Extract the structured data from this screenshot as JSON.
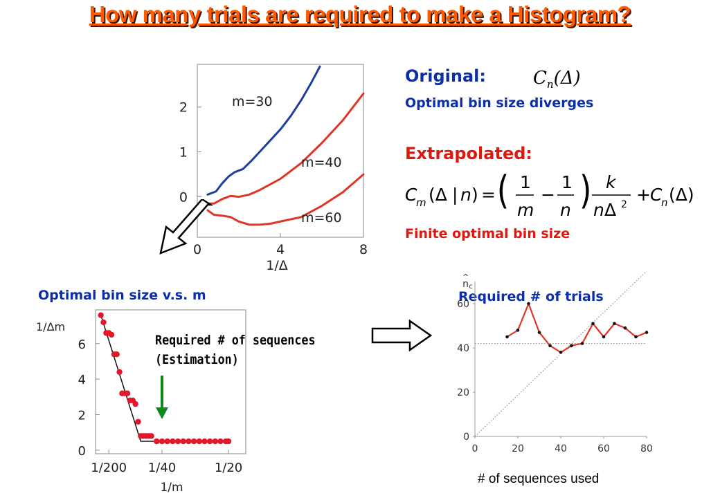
{
  "slide": {
    "title": "How many trials are required to make a Histogram?"
  },
  "colors": {
    "title_orange": "#ff5a00",
    "heading_blue": "#0a2fa8",
    "red": "#e1160f",
    "series_blue": "#1d3f9a",
    "series_red": "#e03424",
    "dots": "#e0182a",
    "arrow_green": "#0d8a1c"
  },
  "right_text": {
    "original_label": "Original:",
    "original_formula": "C_n(Δ)",
    "original_note": "Optimal bin size diverges",
    "extrapolated_label": "Extrapolated:",
    "extrapolated_formula": "C_m(Δ | n) = (1/m − 1/n) k/(nΔ²) + C_n(Δ)",
    "extrapolated_note": "Finite optimal bin size"
  },
  "bottom_left": {
    "heading": "Optimal bin size v.s. m",
    "annotation_line1": "Required # of sequences",
    "annotation_line2": "(Estimation)"
  },
  "bottom_right": {
    "heading": "Required # of trials",
    "footer": "# of sequences used"
  },
  "icons": [
    "hollow-arrow-down-left-icon",
    "hollow-arrow-right-icon",
    "green-arrow-down-icon"
  ],
  "chart_data": [
    {
      "type": "line",
      "xlabel": "1/Δ",
      "ylabel": "",
      "xlim": [
        0,
        8
      ],
      "ylim": [
        -0.9,
        2.95
      ],
      "x_ticks": [
        "0",
        "4",
        "8"
      ],
      "y_ticks": [
        "0",
        "1",
        "2"
      ],
      "series": [
        {
          "name": "m=30",
          "color": "#1d3f9a",
          "x": [
            0.5,
            0.9,
            1.2,
            1.5,
            1.8,
            2.2,
            2.6,
            3.0,
            3.5,
            4.0,
            4.5,
            5.0,
            5.5,
            5.9
          ],
          "y": [
            0.05,
            0.12,
            0.3,
            0.45,
            0.55,
            0.62,
            0.8,
            1.0,
            1.25,
            1.5,
            1.8,
            2.15,
            2.55,
            2.9
          ]
        },
        {
          "name": "m=40",
          "color": "#e03424",
          "x": [
            0.5,
            0.8,
            1.2,
            1.6,
            2.0,
            2.5,
            3.0,
            4.0,
            5.0,
            6.0,
            7.0,
            8.0
          ],
          "y": [
            -0.15,
            -0.15,
            -0.05,
            0.02,
            0.0,
            0.05,
            0.15,
            0.4,
            0.75,
            1.2,
            1.7,
            2.3
          ]
        },
        {
          "name": "m=60",
          "color": "#e03424",
          "x": [
            0.5,
            0.8,
            1.2,
            1.6,
            2.0,
            2.5,
            3.0,
            3.5,
            4.0,
            5.0,
            6.0,
            7.0,
            8.0
          ],
          "y": [
            -0.3,
            -0.4,
            -0.42,
            -0.45,
            -0.55,
            -0.62,
            -0.62,
            -0.6,
            -0.55,
            -0.45,
            -0.2,
            0.1,
            0.5
          ]
        }
      ]
    },
    {
      "type": "scatter",
      "ylabel": "1/Δm",
      "xlabel": "1/m",
      "x_ticks": [
        "1/200",
        "1/40",
        "1/20"
      ],
      "y_ticks": [
        "0",
        "2",
        "4",
        "6"
      ],
      "ylim": [
        -0.2,
        7.9
      ],
      "xlim": [
        0,
        0.0565
      ],
      "points": {
        "x": [
          0.002,
          0.003,
          0.004,
          0.005,
          0.006,
          0.007,
          0.008,
          0.009,
          0.01,
          0.011,
          0.012,
          0.013,
          0.014,
          0.015,
          0.016,
          0.017,
          0.018,
          0.019,
          0.02,
          0.021,
          0.023,
          0.025,
          0.027,
          0.029,
          0.031,
          0.033,
          0.035,
          0.037,
          0.039,
          0.041,
          0.043,
          0.045,
          0.047,
          0.049,
          0.05
        ],
        "y": [
          7.6,
          7.2,
          6.6,
          6.6,
          6.5,
          5.4,
          5.4,
          4.4,
          3.2,
          3.2,
          3.2,
          2.8,
          2.8,
          2.6,
          1.6,
          0.8,
          0.8,
          0.8,
          0.8,
          0.8,
          0.5,
          0.5,
          0.5,
          0.5,
          0.5,
          0.5,
          0.5,
          0.5,
          0.5,
          0.5,
          0.5,
          0.5,
          0.5,
          0.5,
          0.5
        ]
      },
      "fit": {
        "x": [
          0.002,
          0.017,
          0.05
        ],
        "y": [
          7.6,
          0.5,
          0.5
        ]
      }
    },
    {
      "type": "line",
      "ylabel": "n̂c",
      "xlabel": "# of sequences used",
      "xlim": [
        0,
        80
      ],
      "ylim": [
        0,
        70
      ],
      "x_ticks": [
        "0",
        "20",
        "40",
        "60",
        "80"
      ],
      "y_ticks": [
        "0",
        "20",
        "40",
        "60"
      ],
      "series": [
        {
          "name": "",
          "color": "#e03424",
          "x": [
            15,
            20,
            25,
            30,
            35,
            40,
            45,
            50,
            55,
            60,
            65,
            70,
            75,
            80
          ],
          "y": [
            45,
            48,
            60,
            47,
            41,
            38,
            41,
            42,
            51,
            45,
            51,
            49,
            45,
            47
          ]
        }
      ],
      "reference_lines": [
        {
          "type": "horizontal",
          "y": 42,
          "style": "dotted"
        },
        {
          "type": "diagonal",
          "points": [
            [
              0,
              0
            ],
            [
              80,
              80
            ]
          ],
          "style": "dotted"
        }
      ]
    }
  ]
}
